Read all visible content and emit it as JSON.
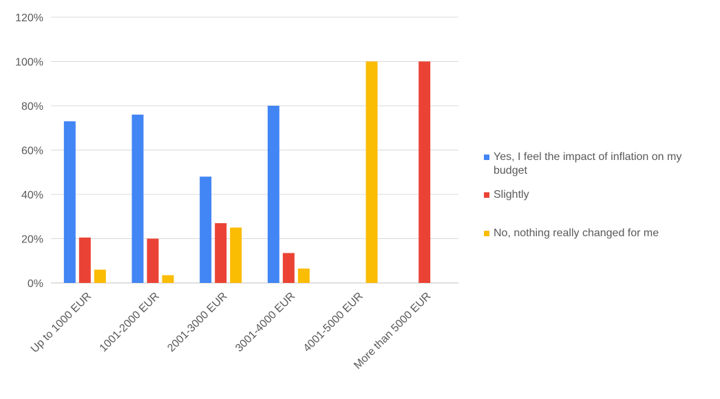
{
  "chart_data": {
    "type": "bar",
    "title": "",
    "xlabel": "",
    "ylabel": "",
    "ylim": [
      0,
      120
    ],
    "y_ticks": [
      0,
      20,
      40,
      60,
      80,
      100,
      120
    ],
    "y_tick_format": "percent",
    "grid": true,
    "legend_position": "right",
    "categories": [
      "Up to 1000 EUR",
      "1001-2000 EUR",
      "2001-3000 EUR",
      "3001-4000 EUR",
      "4001-5000 EUR",
      "More than 5000 EUR"
    ],
    "series": [
      {
        "name": "Yes, I feel the impact of inflation on my budget",
        "color": "#4285F4",
        "values": [
          73,
          76,
          48,
          80,
          0,
          0
        ]
      },
      {
        "name": "Slightly",
        "color": "#EA4335",
        "values": [
          20.5,
          20,
          27,
          13.5,
          0,
          100
        ]
      },
      {
        "name": "No, nothing really changed for me",
        "color": "#FBBC04",
        "values": [
          6,
          3.5,
          25,
          6.5,
          100,
          0
        ]
      }
    ]
  }
}
